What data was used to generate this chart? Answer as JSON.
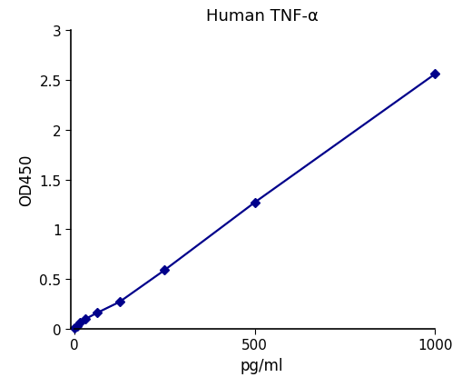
{
  "title": "Human TNF-α",
  "xlabel": "pg/ml",
  "ylabel": "OD450",
  "x_data": [
    0,
    7.8,
    15.6,
    31.25,
    62.5,
    125,
    250,
    500,
    1000
  ],
  "y_data": [
    0.01,
    0.03,
    0.06,
    0.1,
    0.16,
    0.27,
    0.59,
    1.27,
    2.56
  ],
  "line_color": "#00008B",
  "marker_color": "#00008B",
  "marker": "D",
  "marker_size": 5,
  "line_width": 1.6,
  "xlim": [
    -10,
    1050
  ],
  "ylim": [
    0,
    3.0
  ],
  "xticks": [
    0,
    500,
    1000
  ],
  "yticks": [
    0,
    0.5,
    1.0,
    1.5,
    2.0,
    2.5,
    3.0
  ],
  "ytick_labels": [
    "0",
    "0.5",
    "1",
    "1.5",
    "2",
    "2.5",
    "3"
  ],
  "title_fontsize": 13,
  "label_fontsize": 12,
  "tick_fontsize": 11,
  "background_color": "#ffffff"
}
